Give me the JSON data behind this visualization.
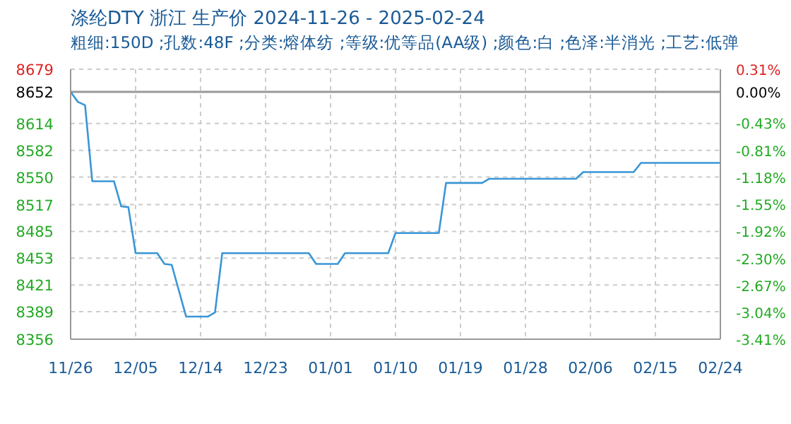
{
  "chart_data": {
    "type": "line",
    "title": "涤纶DTY 浙江 生产价 2024-11-26 - 2025-02-24",
    "subtitle": "粗细:150D ;孔数:48F ;分类:熔体纺 ;等级:优等品(AA级) ;颜色:白 ;色泽:半消光 ;工艺:低弹",
    "x": [
      "2024-11-26",
      "2024-11-27",
      "2024-11-28",
      "2024-11-29",
      "2024-12-02",
      "2024-12-03",
      "2024-12-04",
      "2024-12-05",
      "2024-12-08",
      "2024-12-09",
      "2024-12-10",
      "2024-12-12",
      "2024-12-15",
      "2024-12-16",
      "2024-12-17",
      "2024-12-29",
      "2024-12-30",
      "2025-01-02",
      "2025-01-03",
      "2025-01-09",
      "2025-01-10",
      "2025-01-16",
      "2025-01-17",
      "2025-01-22",
      "2025-01-23",
      "2025-02-04",
      "2025-02-05",
      "2025-02-12",
      "2025-02-13",
      "2025-02-24"
    ],
    "series": [
      {
        "color": "#3a96d6",
        "values": [
          8652,
          8640,
          8636,
          8545,
          8545,
          8515,
          8514,
          8459,
          8459,
          8446,
          8445,
          8383,
          8383,
          8388,
          8459,
          8459,
          8446,
          8446,
          8459,
          8459,
          8483,
          8483,
          8543,
          8543,
          8548,
          8548,
          8556,
          8556,
          8567,
          8567
        ]
      }
    ],
    "xlim": [
      "2024-11-26",
      "2025-02-24"
    ],
    "xticks": [
      {
        "value": "2024-11-26",
        "label": "11/26"
      },
      {
        "value": "2024-12-05",
        "label": "12/05"
      },
      {
        "value": "2024-12-14",
        "label": "12/14"
      },
      {
        "value": "2024-12-23",
        "label": "12/23"
      },
      {
        "value": "2025-01-01",
        "label": "01/01"
      },
      {
        "value": "2025-01-10",
        "label": "01/10"
      },
      {
        "value": "2025-01-19",
        "label": "01/19"
      },
      {
        "value": "2025-01-28",
        "label": "01/28"
      },
      {
        "value": "2025-02-06",
        "label": "02/06"
      },
      {
        "value": "2025-02-15",
        "label": "02/15"
      },
      {
        "value": "2025-02-24",
        "label": "02/24"
      }
    ],
    "ylim": [
      8356,
      8679
    ],
    "yticks": [
      8356,
      8389,
      8421,
      8453,
      8485,
      8517,
      8550,
      8582,
      8614,
      8652,
      8679
    ],
    "y2lim": [
      -3.41,
      0.31
    ],
    "y2ticks": [
      {
        "value": -3.41,
        "label": "-3.41%"
      },
      {
        "value": -3.04,
        "label": "-3.04%"
      },
      {
        "value": -2.67,
        "label": "-2.67%"
      },
      {
        "value": -2.3,
        "label": "-2.30%"
      },
      {
        "value": -1.92,
        "label": "-1.92%"
      },
      {
        "value": -1.55,
        "label": "-1.55%"
      },
      {
        "value": -1.18,
        "label": "-1.18%"
      },
      {
        "value": -0.81,
        "label": "-0.81%"
      },
      {
        "value": -0.43,
        "label": "-0.43%"
      },
      {
        "value": 0,
        "label": "0.00%"
      },
      {
        "value": 0.31,
        "label": "0.31%"
      }
    ],
    "ref_lines": [
      {
        "axis": "y",
        "value": 8652,
        "color": "#999999"
      }
    ],
    "grid": true,
    "marker": "none",
    "line_style": "solid"
  }
}
